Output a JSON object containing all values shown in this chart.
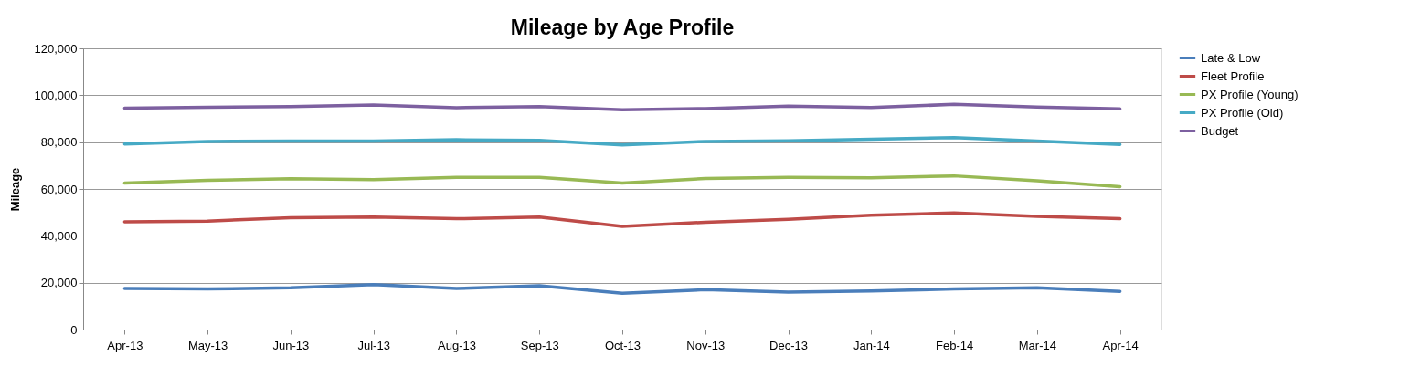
{
  "chart_data": {
    "type": "line",
    "title": "Mileage by Age Profile",
    "ylabel": "Mileage",
    "categories": [
      "Apr-13",
      "May-13",
      "Jun-13",
      "Jul-13",
      "Aug-13",
      "Sep-13",
      "Oct-13",
      "Nov-13",
      "Dec-13",
      "Jan-14",
      "Feb-14",
      "Mar-14",
      "Apr-14"
    ],
    "series": [
      {
        "name": "Late & Low",
        "color": "#4a7ebb",
        "values": [
          17500,
          17300,
          17800,
          19200,
          17500,
          18700,
          15500,
          17000,
          16000,
          16500,
          17300,
          17800,
          16300
        ]
      },
      {
        "name": "Fleet Profile",
        "color": "#be4b48",
        "values": [
          46000,
          46300,
          47700,
          48000,
          47300,
          48000,
          44000,
          45800,
          47000,
          48800,
          49800,
          48300,
          47300
        ]
      },
      {
        "name": "PX Profile (Young)",
        "color": "#98b954",
        "values": [
          62500,
          63700,
          64400,
          64000,
          65000,
          65000,
          62500,
          64500,
          65000,
          64800,
          65600,
          63500,
          61000
        ]
      },
      {
        "name": "PX Profile (Old)",
        "color": "#46aac5",
        "values": [
          79200,
          80300,
          80500,
          80500,
          81000,
          80700,
          78800,
          80300,
          80600,
          81200,
          81900,
          80500,
          79000
        ]
      },
      {
        "name": "Budget",
        "color": "#7d60a0",
        "values": [
          94500,
          94900,
          95200,
          95800,
          94700,
          95200,
          93800,
          94300,
          95400,
          94800,
          96100,
          95000,
          94200
        ]
      }
    ],
    "ylim": [
      0,
      120000
    ],
    "yticks": [
      0,
      {
        "value": 20000,
        "label": "20,000"
      },
      {
        "value": 40000,
        "label": "40,000"
      },
      {
        "value": 60000,
        "label": "60,000"
      },
      {
        "value": 80000,
        "label": "80,000"
      },
      {
        "value": 100000,
        "label": "100,000"
      },
      {
        "value": 120000,
        "label": "120,000"
      }
    ],
    "grid": "y",
    "legend": "right",
    "marker": "none",
    "line_style": "solid"
  }
}
